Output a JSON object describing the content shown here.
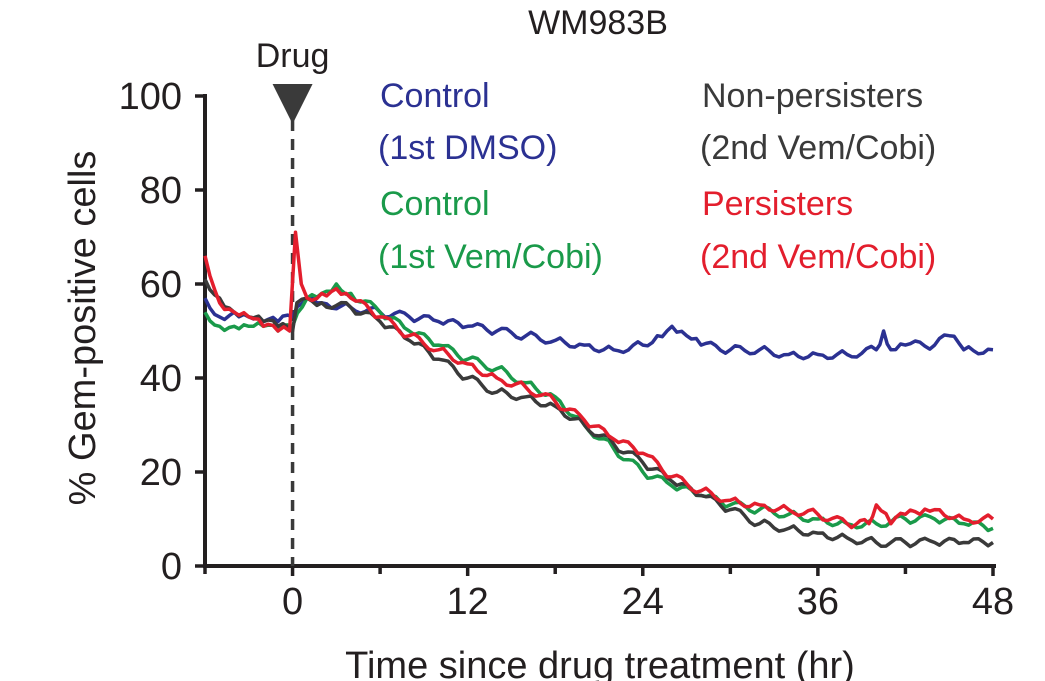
{
  "chart_data": {
    "type": "line",
    "title": "WM983B",
    "xlabel": "Time since drug treatment (hr)",
    "ylabel": "% Gem-positive cells",
    "xlim": [
      -6,
      48
    ],
    "ylim": [
      0,
      100
    ],
    "xticks": [
      0,
      12,
      24,
      36,
      48
    ],
    "xtick_labels": [
      "0",
      "12",
      "24",
      "36",
      "48"
    ],
    "xminor_ticks": [
      -6,
      6,
      18,
      30,
      42
    ],
    "yticks": [
      0,
      20,
      40,
      60,
      80,
      100
    ],
    "ytick_labels": [
      "0",
      "20",
      "40",
      "60",
      "80",
      "100"
    ],
    "annotation": {
      "label": "Drug",
      "x": 0
    },
    "legend": [
      {
        "line1": "Control",
        "line2": "(1st DMSO)",
        "color": "#2b3192"
      },
      {
        "line1": "Control",
        "line2": "(1st Vem/Cobi)",
        "color": "#1a9a4a"
      },
      {
        "line1": "Non-persisters",
        "line2": "(2nd Vem/Cobi)",
        "color": "#3a3a3a"
      },
      {
        "line1": "Persisters",
        "line2": "(2nd Vem/Cobi)",
        "color": "#e31e2d"
      }
    ],
    "series": [
      {
        "name": "Control (1st DMSO)",
        "color": "#2b3192",
        "x": [
          -6,
          -5,
          -4,
          -3,
          -2,
          -1,
          0,
          1,
          2,
          4,
          6,
          8,
          10,
          12,
          14,
          16,
          18,
          20,
          22,
          24,
          25,
          26,
          27,
          28,
          30,
          32,
          34,
          36,
          38,
          40,
          40.5,
          41,
          42,
          44,
          45,
          46,
          48
        ],
        "values": [
          57,
          53,
          54,
          53,
          52,
          52,
          53,
          57,
          56,
          55,
          54,
          53,
          52,
          51,
          50,
          49,
          48,
          47,
          46,
          47,
          49,
          51,
          49,
          47,
          46,
          46,
          45,
          45,
          45,
          46,
          50,
          46,
          47,
          47,
          49,
          46,
          46
        ]
      },
      {
        "name": "Control (1st Vem/Cobi)",
        "color": "#1a9a4a",
        "x": [
          -6,
          -5,
          -4,
          -3,
          -2,
          -1,
          0,
          1,
          2,
          3,
          4,
          6,
          8,
          10,
          12,
          14,
          16,
          18,
          20,
          22,
          24,
          26,
          28,
          30,
          32,
          34,
          36,
          38,
          40,
          42,
          44,
          46,
          48
        ],
        "values": [
          54,
          51,
          51,
          51,
          51,
          50,
          51,
          57,
          58,
          60,
          58,
          54,
          50,
          47,
          44,
          42,
          39,
          36,
          30,
          25,
          20,
          17,
          15,
          13,
          12,
          11,
          10,
          9,
          9,
          10,
          10,
          9,
          8
        ]
      },
      {
        "name": "Non-persisters (2nd Vem/Cobi)",
        "color": "#3a3a3a",
        "x": [
          -6,
          -5,
          -4,
          -3,
          -2,
          -1,
          0,
          0.3,
          1,
          2,
          4,
          6,
          8,
          10,
          12,
          14,
          16,
          18,
          20,
          22,
          24,
          26,
          28,
          30,
          32,
          34,
          36,
          38,
          40,
          42,
          44,
          46,
          48
        ],
        "values": [
          61,
          57,
          54,
          53,
          52,
          51,
          50,
          56,
          57,
          56,
          55,
          52,
          48,
          44,
          40,
          37,
          36,
          34,
          30,
          26,
          22,
          18,
          15,
          12,
          9,
          8,
          7,
          6,
          5,
          5,
          5,
          5,
          5
        ]
      },
      {
        "name": "Persisters (2nd Vem/Cobi)",
        "color": "#e31e2d",
        "x": [
          -6,
          -5,
          -4,
          -3,
          -2,
          -1,
          -0.2,
          0.2,
          0.6,
          1,
          2,
          3,
          4,
          6,
          8,
          10,
          12,
          14,
          16,
          18,
          20,
          22,
          24,
          26,
          28,
          30,
          32,
          34,
          36,
          38,
          39.5,
          40,
          41,
          42,
          43,
          44,
          46,
          48
        ],
        "values": [
          66,
          56,
          54,
          53,
          51,
          50,
          50,
          71,
          60,
          57,
          58,
          59,
          57,
          53,
          49,
          46,
          43,
          40,
          38,
          35,
          31,
          27,
          24,
          19,
          16,
          14,
          13,
          12,
          11,
          9,
          9,
          13,
          9,
          11,
          11,
          12,
          10,
          10
        ]
      }
    ]
  }
}
